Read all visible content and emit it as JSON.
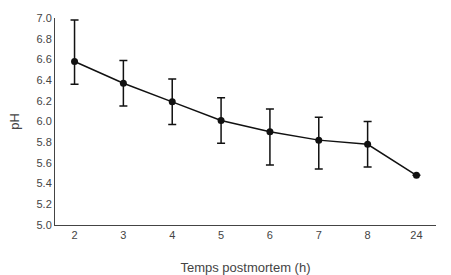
{
  "chart_data": {
    "type": "line",
    "xlabel": "Temps postmortem (h)",
    "ylabel": "pH",
    "categories": [
      "2",
      "3",
      "4",
      "5",
      "6",
      "7",
      "8",
      "24"
    ],
    "values": [
      6.58,
      6.37,
      6.19,
      6.01,
      5.9,
      5.82,
      5.78,
      5.48
    ],
    "yerr_upper": [
      0.4,
      0.22,
      0.22,
      0.22,
      0.22,
      0.22,
      0.22,
      0.0
    ],
    "yerr_lower": [
      0.22,
      0.22,
      0.22,
      0.22,
      0.32,
      0.28,
      0.22,
      0.0
    ],
    "color": "#111111",
    "marker": "circle",
    "line_style": "solid",
    "ylim": [
      5.0,
      7.0
    ],
    "yticks": [
      {
        "value": 5.0,
        "label": "5.0"
      },
      5.2,
      5.4,
      5.6,
      5.8,
      {
        "value": 6.0,
        "label": "6.0"
      },
      6.2,
      6.4,
      6.6,
      6.8,
      {
        "value": 7.0,
        "label": "7.0"
      }
    ],
    "grid": false
  }
}
